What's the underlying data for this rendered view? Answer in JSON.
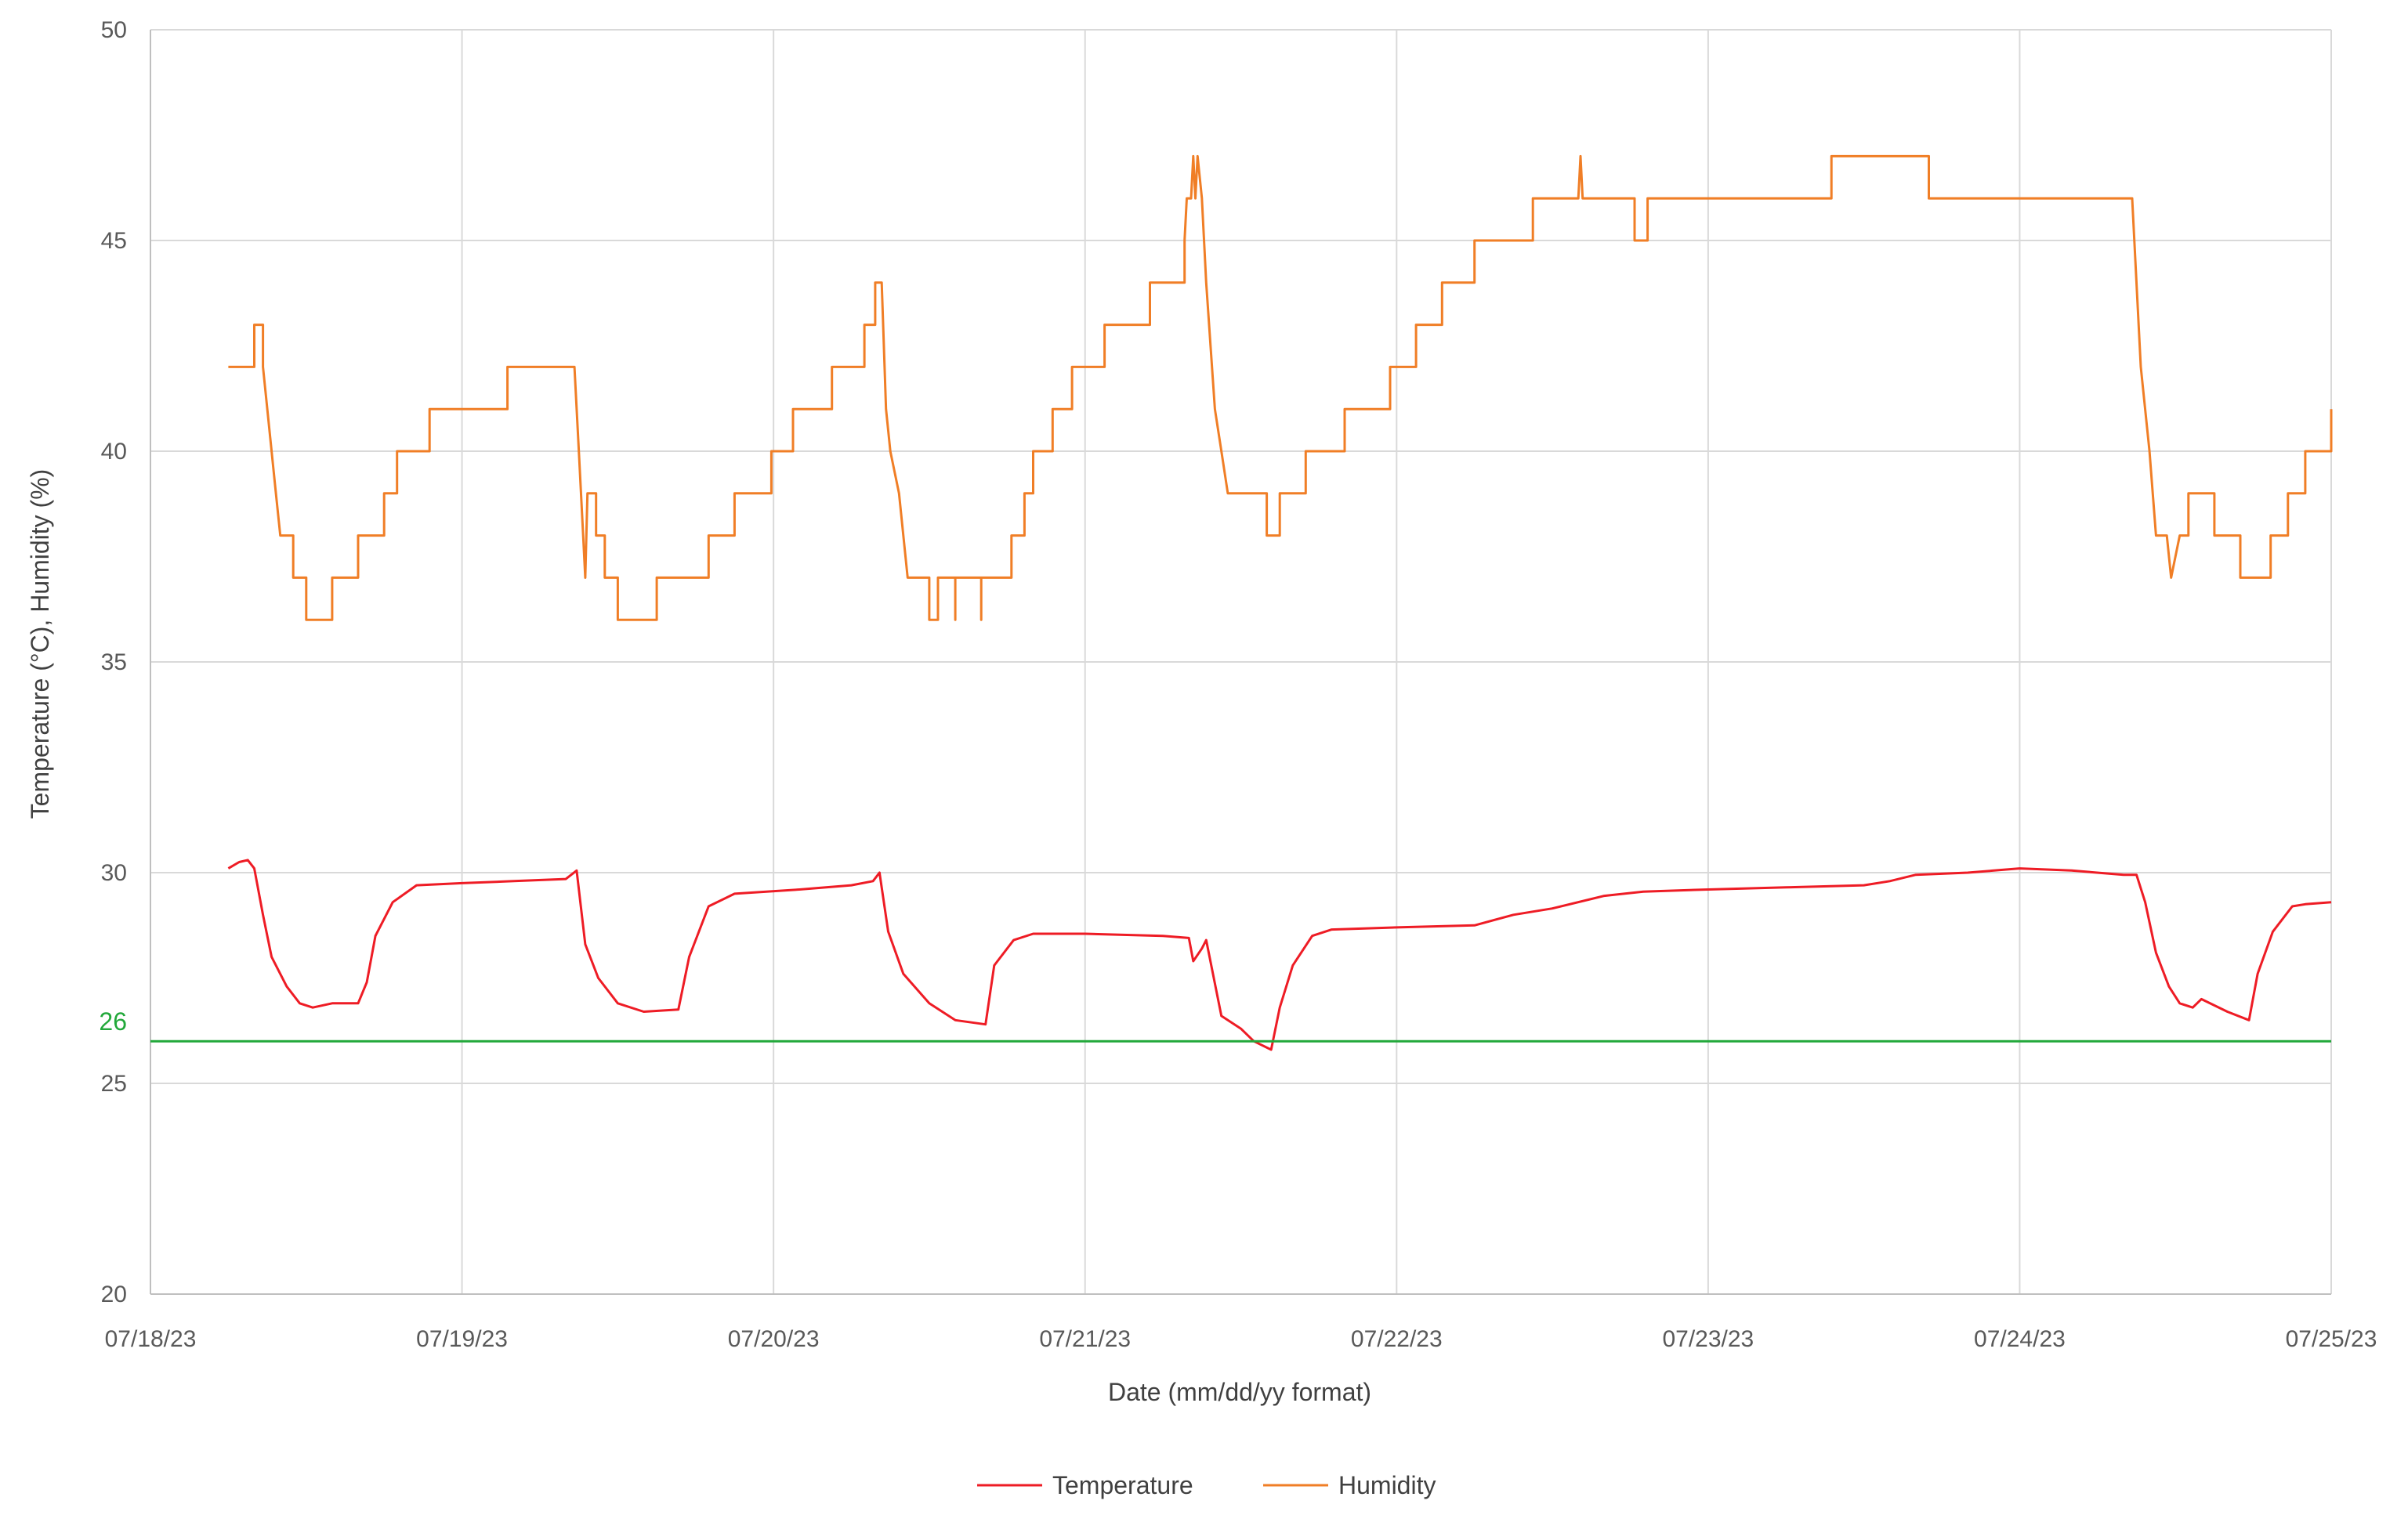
{
  "chart_data": {
    "type": "line",
    "title": "",
    "xlabel": "Date (mm/dd/yy format)",
    "ylabel": "Temperature (°C), Humidity (%)",
    "x_tick_labels": [
      "07/18/23",
      "07/19/23",
      "07/20/23",
      "07/21/23",
      "07/22/23",
      "07/23/23",
      "07/24/23",
      "07/25/23"
    ],
    "xlim": [
      "07/18/23",
      "07/25/23"
    ],
    "ylim": [
      20,
      50
    ],
    "y_ticks": [
      20,
      25,
      30,
      35,
      40,
      45,
      50
    ],
    "grid": true,
    "legend_position": "bottom",
    "reference_line": {
      "value": 26,
      "label": "26",
      "color": "#22a83a"
    },
    "series": [
      {
        "name": "Temperature",
        "color": "#ee1c25",
        "points": [
          [
            "07/18/23 06:00",
            30.1
          ],
          [
            "07/18/23 06:50",
            30.25
          ],
          [
            "07/18/23 07:30",
            30.3
          ],
          [
            "07/18/23 08:00",
            30.1
          ],
          [
            "07/18/23 08:40",
            29.0
          ],
          [
            "07/18/23 09:20",
            28.0
          ],
          [
            "07/18/23 10:30",
            27.3
          ],
          [
            "07/18/23 11:30",
            26.9
          ],
          [
            "07/18/23 12:30",
            26.8
          ],
          [
            "07/18/23 14:00",
            26.9
          ],
          [
            "07/18/23 16:00",
            26.9
          ],
          [
            "07/18/23 16:40",
            27.4
          ],
          [
            "07/18/23 17:20",
            28.5
          ],
          [
            "07/18/23 18:40",
            29.3
          ],
          [
            "07/18/23 20:30",
            29.7
          ],
          [
            "07/19/23 00:00",
            29.75
          ],
          [
            "07/19/23 04:00",
            29.8
          ],
          [
            "07/19/23 08:00",
            29.85
          ],
          [
            "07/19/23 08:50",
            30.05
          ],
          [
            "07/19/23 09:30",
            28.3
          ],
          [
            "07/19/23 10:30",
            27.5
          ],
          [
            "07/19/23 12:00",
            26.9
          ],
          [
            "07/19/23 14:00",
            26.7
          ],
          [
            "07/19/23 16:40",
            26.75
          ],
          [
            "07/19/23 17:30",
            28.0
          ],
          [
            "07/19/23 19:00",
            29.2
          ],
          [
            "07/19/23 21:00",
            29.5
          ],
          [
            "07/20/23 02:00",
            29.6
          ],
          [
            "07/20/23 06:00",
            29.7
          ],
          [
            "07/20/23 07:40",
            29.8
          ],
          [
            "07/20/23 08:10",
            30.0
          ],
          [
            "07/20/23 08:50",
            28.6
          ],
          [
            "07/20/23 10:00",
            27.6
          ],
          [
            "07/20/23 12:00",
            26.9
          ],
          [
            "07/20/23 14:00",
            26.5
          ],
          [
            "07/20/23 16:20",
            26.4
          ],
          [
            "07/20/23 17:00",
            27.8
          ],
          [
            "07/20/23 18:30",
            28.4
          ],
          [
            "07/20/23 20:00",
            28.55
          ],
          [
            "07/21/23 00:00",
            28.55
          ],
          [
            "07/21/23 06:00",
            28.5
          ],
          [
            "07/21/23 08:00",
            28.45
          ],
          [
            "07/21/23 08:20",
            27.9
          ],
          [
            "07/21/23 09:00",
            28.2
          ],
          [
            "07/21/23 09:20",
            28.4
          ],
          [
            "07/21/23 10:30",
            26.6
          ],
          [
            "07/21/23 12:00",
            26.3
          ],
          [
            "07/21/23 13:00",
            26.0
          ],
          [
            "07/21/23 14:20",
            25.8
          ],
          [
            "07/21/23 15:00",
            26.8
          ],
          [
            "07/21/23 16:00",
            27.8
          ],
          [
            "07/21/23 17:30",
            28.5
          ],
          [
            "07/21/23 19:00",
            28.65
          ],
          [
            "07/22/23 00:00",
            28.7
          ],
          [
            "07/22/23 06:00",
            28.75
          ],
          [
            "07/22/23 09:00",
            29.0
          ],
          [
            "07/22/23 12:00",
            29.15
          ],
          [
            "07/22/23 16:00",
            29.45
          ],
          [
            "07/22/23 19:00",
            29.55
          ],
          [
            "07/23/23 00:00",
            29.6
          ],
          [
            "07/23/23 06:00",
            29.65
          ],
          [
            "07/23/23 12:00",
            29.7
          ],
          [
            "07/23/23 14:00",
            29.8
          ],
          [
            "07/23/23 16:00",
            29.95
          ],
          [
            "07/23/23 20:00",
            30.0
          ],
          [
            "07/24/23 00:00",
            30.1
          ],
          [
            "07/24/23 04:00",
            30.05
          ],
          [
            "07/24/23 08:00",
            29.95
          ],
          [
            "07/24/23 09:00",
            29.95
          ],
          [
            "07/24/23 09:40",
            29.3
          ],
          [
            "07/24/23 10:30",
            28.1
          ],
          [
            "07/24/23 11:30",
            27.3
          ],
          [
            "07/24/23 12:20",
            26.9
          ],
          [
            "07/24/23 13:20",
            26.8
          ],
          [
            "07/24/23 14:00",
            27.0
          ],
          [
            "07/24/23 16:00",
            26.7
          ],
          [
            "07/24/23 17:40",
            26.5
          ],
          [
            "07/24/23 18:20",
            27.6
          ],
          [
            "07/24/23 19:30",
            28.6
          ],
          [
            "07/24/23 21:00",
            29.2
          ],
          [
            "07/24/23 22:00",
            29.25
          ],
          [
            "07/25/23 00:00",
            29.3
          ]
        ]
      },
      {
        "name": "Humidity",
        "color": "#f07e26",
        "points": [
          [
            "07/18/23 06:00",
            42
          ],
          [
            "07/18/23 08:00",
            42
          ],
          [
            "07/18/23 08:00",
            43
          ],
          [
            "07/18/23 08:40",
            43
          ],
          [
            "07/18/23 08:40",
            42
          ],
          [
            "07/18/23 09:00",
            41
          ],
          [
            "07/18/23 09:20",
            40
          ],
          [
            "07/18/23 09:40",
            39
          ],
          [
            "07/18/23 10:00",
            38
          ],
          [
            "07/18/23 11:00",
            38
          ],
          [
            "07/18/23 11:00",
            37
          ],
          [
            "07/18/23 12:00",
            37
          ],
          [
            "07/18/23 12:00",
            36
          ],
          [
            "07/18/23 14:00",
            36
          ],
          [
            "07/18/23 14:00",
            37
          ],
          [
            "07/18/23 16:00",
            37
          ],
          [
            "07/18/23 16:00",
            38
          ],
          [
            "07/18/23 18:00",
            38
          ],
          [
            "07/18/23 18:00",
            39
          ],
          [
            "07/18/23 19:00",
            39
          ],
          [
            "07/18/23 19:00",
            40
          ],
          [
            "07/18/23 21:30",
            40
          ],
          [
            "07/18/23 21:30",
            41
          ],
          [
            "07/19/23 03:30",
            41
          ],
          [
            "07/19/23 03:30",
            42
          ],
          [
            "07/19/23 08:40",
            42
          ],
          [
            "07/19/23 09:00",
            40
          ],
          [
            "07/19/23 09:20",
            38
          ],
          [
            "07/19/23 09:30",
            37
          ],
          [
            "07/19/23 09:40",
            39
          ],
          [
            "07/19/23 10:20",
            39
          ],
          [
            "07/19/23 10:20",
            38
          ],
          [
            "07/19/23 11:00",
            38
          ],
          [
            "07/19/23 11:00",
            37
          ],
          [
            "07/19/23 12:00",
            37
          ],
          [
            "07/19/23 12:00",
            36
          ],
          [
            "07/19/23 15:00",
            36
          ],
          [
            "07/19/23 15:00",
            37
          ],
          [
            "07/19/23 19:00",
            37
          ],
          [
            "07/19/23 19:00",
            38
          ],
          [
            "07/19/23 21:00",
            38
          ],
          [
            "07/19/23 21:00",
            39
          ],
          [
            "07/19/23 23:50",
            39
          ],
          [
            "07/19/23 23:50",
            40
          ],
          [
            "07/20/23 01:30",
            40
          ],
          [
            "07/20/23 01:30",
            41
          ],
          [
            "07/20/23 04:30",
            41
          ],
          [
            "07/20/23 04:30",
            42
          ],
          [
            "07/20/23 07:00",
            42
          ],
          [
            "07/20/23 07:00",
            43
          ],
          [
            "07/20/23 07:50",
            43
          ],
          [
            "07/20/23 07:50",
            44
          ],
          [
            "07/20/23 08:20",
            44
          ],
          [
            "07/20/23 08:40",
            41
          ],
          [
            "07/20/23 09:00",
            40
          ],
          [
            "07/20/23 09:40",
            39
          ],
          [
            "07/20/23 10:00",
            38
          ],
          [
            "07/20/23 10:20",
            37
          ],
          [
            "07/20/23 12:00",
            37
          ],
          [
            "07/20/23 12:00",
            36
          ],
          [
            "07/20/23 12:40",
            36
          ],
          [
            "07/20/23 12:40",
            37
          ],
          [
            "07/20/23 14:00",
            37
          ],
          [
            "07/20/23 14:00",
            36
          ],
          [
            "07/20/23 14:00",
            37
          ],
          [
            "07/20/23 16:00",
            37
          ],
          [
            "07/20/23 16:00",
            36
          ],
          [
            "07/20/23 16:00",
            37
          ],
          [
            "07/20/23 18:20",
            37
          ],
          [
            "07/20/23 18:20",
            38
          ],
          [
            "07/20/23 19:20",
            38
          ],
          [
            "07/20/23 19:20",
            39
          ],
          [
            "07/20/23 20:00",
            39
          ],
          [
            "07/20/23 20:00",
            40
          ],
          [
            "07/20/23 21:30",
            40
          ],
          [
            "07/20/23 21:30",
            41
          ],
          [
            "07/20/23 23:00",
            41
          ],
          [
            "07/20/23 23:00",
            42
          ],
          [
            "07/21/23 01:30",
            42
          ],
          [
            "07/21/23 01:30",
            43
          ],
          [
            "07/21/23 05:00",
            43
          ],
          [
            "07/21/23 05:00",
            44
          ],
          [
            "07/21/23 07:40",
            44
          ],
          [
            "07/21/23 07:40",
            45
          ],
          [
            "07/21/23 07:50",
            46
          ],
          [
            "07/21/23 08:10",
            46
          ],
          [
            "07/21/23 08:20",
            47
          ],
          [
            "07/21/23 08:30",
            46
          ],
          [
            "07/21/23 08:40",
            47
          ],
          [
            "07/21/23 09:00",
            46
          ],
          [
            "07/21/23 09:20",
            44
          ],
          [
            "07/21/23 10:00",
            41
          ],
          [
            "07/21/23 10:30",
            40
          ],
          [
            "07/21/23 11:00",
            39
          ],
          [
            "07/21/23 14:00",
            39
          ],
          [
            "07/21/23 14:00",
            38
          ],
          [
            "07/21/23 15:00",
            38
          ],
          [
            "07/21/23 15:00",
            39
          ],
          [
            "07/21/23 17:00",
            39
          ],
          [
            "07/21/23 17:00",
            40
          ],
          [
            "07/21/23 20:00",
            40
          ],
          [
            "07/21/23 20:00",
            41
          ],
          [
            "07/21/23 23:30",
            41
          ],
          [
            "07/21/23 23:30",
            42
          ],
          [
            "07/22/23 01:30",
            42
          ],
          [
            "07/22/23 01:30",
            43
          ],
          [
            "07/22/23 03:30",
            43
          ],
          [
            "07/22/23 03:30",
            44
          ],
          [
            "07/22/23 06:00",
            44
          ],
          [
            "07/22/23 06:00",
            45
          ],
          [
            "07/22/23 10:30",
            45
          ],
          [
            "07/22/23 10:30",
            46
          ],
          [
            "07/22/23 14:00",
            46
          ],
          [
            "07/22/23 14:10",
            47
          ],
          [
            "07/22/23 14:20",
            46
          ],
          [
            "07/22/23 18:20",
            46
          ],
          [
            "07/22/23 18:20",
            45
          ],
          [
            "07/22/23 19:20",
            45
          ],
          [
            "07/22/23 19:20",
            46
          ],
          [
            "07/23/23 09:30",
            46
          ],
          [
            "07/23/23 09:30",
            47
          ],
          [
            "07/23/23 17:00",
            47
          ],
          [
            "07/23/23 17:00",
            46
          ],
          [
            "07/24/23 08:40",
            46
          ],
          [
            "07/24/23 09:20",
            42
          ],
          [
            "07/24/23 10:00",
            40
          ],
          [
            "07/24/23 10:30",
            38
          ],
          [
            "07/24/23 11:20",
            38
          ],
          [
            "07/24/23 11:40",
            37
          ],
          [
            "07/24/23 12:20",
            38
          ],
          [
            "07/24/23 13:00",
            38
          ],
          [
            "07/24/23 13:00",
            39
          ],
          [
            "07/24/23 15:00",
            39
          ],
          [
            "07/24/23 15:00",
            38
          ],
          [
            "07/24/23 17:00",
            38
          ],
          [
            "07/24/23 17:00",
            37
          ],
          [
            "07/24/23 19:20",
            37
          ],
          [
            "07/24/23 19:20",
            38
          ],
          [
            "07/24/23 20:40",
            38
          ],
          [
            "07/24/23 20:40",
            39
          ],
          [
            "07/24/23 22:00",
            39
          ],
          [
            "07/24/23 22:00",
            40
          ],
          [
            "07/25/23 00:00",
            40
          ],
          [
            "07/25/23 00:00",
            41
          ]
        ]
      }
    ]
  }
}
